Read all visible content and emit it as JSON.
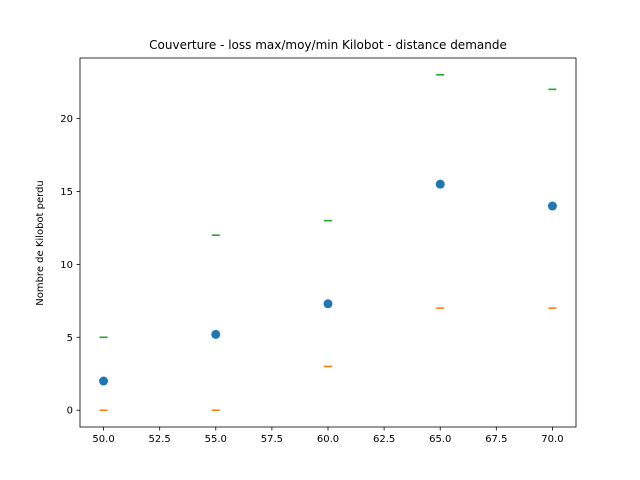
{
  "chart_data": {
    "type": "scatter",
    "title": "Couverture - loss max/moy/min Kilobot - distance demande",
    "xlabel": "",
    "ylabel": "Nombre de Kilobot perdu",
    "x": [
      50,
      55,
      60,
      65,
      70
    ],
    "series": [
      {
        "role": "mean",
        "marker": "circle",
        "color": "#1f77b4",
        "values": [
          2,
          5.2,
          7.3,
          15.5,
          14
        ]
      },
      {
        "role": "min",
        "marker": "dash",
        "color": "#ff7f0e",
        "values": [
          0,
          0,
          3,
          7,
          7
        ]
      },
      {
        "role": "max",
        "marker": "dash",
        "color": "#2ca02c",
        "values": [
          5,
          12,
          13,
          23,
          22
        ]
      }
    ],
    "xlim": [
      48.95,
      71.05
    ],
    "ylim": [
      -1.15,
      24.15
    ],
    "xticks": [
      "50.0",
      "52.5",
      "55.0",
      "57.5",
      "60.0",
      "62.5",
      "65.0",
      "67.5",
      "70.0"
    ],
    "yticks": [
      "0",
      "5",
      "10",
      "15",
      "20"
    ],
    "grid": false,
    "legend": "none"
  }
}
